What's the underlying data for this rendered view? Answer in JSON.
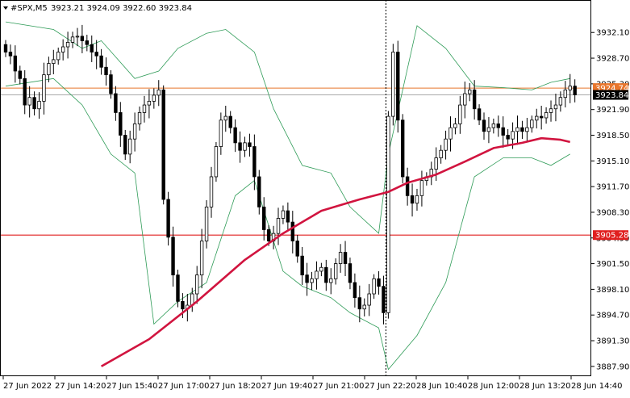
{
  "header": {
    "symbol": "#SPX,M5",
    "ohlc": "3923.21 3924.09 3922.60 3923.84"
  },
  "colors": {
    "background": "#ffffff",
    "bull_candle": "#000000",
    "bear_candle": "#000000",
    "sma": "#d1143f",
    "bollinger": "#2e9b57",
    "upper_hline": "#e8762d",
    "lower_hline": "#e01f1f",
    "price_line": "#a9a9a9",
    "session_separator": "#000000"
  },
  "chart_data": {
    "type": "candlestick",
    "ylim": [
      3886.6,
      3936.4
    ],
    "y_ticks": [
      "3932.10",
      "3928.70",
      "3925.30",
      "3921.90",
      "3918.50",
      "3915.10",
      "3911.70",
      "3908.30",
      "3904.90",
      "3901.50",
      "3898.10",
      "3894.70",
      "3891.30",
      "3887.90"
    ],
    "x_ticks": [
      "27 Jun 2022",
      "27 Jun 14:20",
      "27 Jun 15:40",
      "27 Jun 17:00",
      "27 Jun 18:20",
      "27 Jun 19:40",
      "27 Jun 21:00",
      "27 Jun 22:20",
      "28 Jun 10:40",
      "28 Jun 12:00",
      "28 Jun 13:20",
      "28 Jun 14:40"
    ],
    "price_labels": [
      {
        "name": "upper-level",
        "value": 3924.74,
        "label": "3924.74"
      },
      {
        "name": "current-price",
        "value": 3923.84,
        "label": "3923.84"
      },
      {
        "name": "lower-level",
        "value": 3905.28,
        "label": "3905.28"
      }
    ],
    "session_break_index": 80,
    "candle_closes": [
      3929.5,
      3929.0,
      3927.0,
      3926.0,
      3922.5,
      3923.5,
      3922.0,
      3923.0,
      3926.5,
      3928.0,
      3928.5,
      3929.5,
      3930.2,
      3930.8,
      3931.5,
      3931.6,
      3931.0,
      3930.5,
      3929.5,
      3929.0,
      3927.5,
      3926.5,
      3924.0,
      3921.5,
      3918.5,
      3916.0,
      3918.0,
      3920.0,
      3921.5,
      3922.5,
      3923.0,
      3923.8,
      3924.5,
      3910.0,
      3905.0,
      3900.0,
      3896.5,
      3895.5,
      3896.0,
      3897.5,
      3900.0,
      3904.5,
      3909.0,
      3913.0,
      3917.0,
      3920.5,
      3921.0,
      3919.5,
      3917.5,
      3916.5,
      3917.5,
      3917.0,
      3913.0,
      3909.0,
      3906.0,
      3904.5,
      3905.5,
      3907.5,
      3908.5,
      3907.0,
      3904.5,
      3902.5,
      3900.0,
      3899.0,
      3899.5,
      3900.5,
      3901.0,
      3899.0,
      3899.5,
      3901.5,
      3903.0,
      3901.5,
      3899.0,
      3897.0,
      3895.5,
      3896.0,
      3897.5,
      3899.5,
      3898.5,
      3895.0,
      3921.0,
      3929.5,
      3920.5,
      3913.0,
      3910.5,
      3909.5,
      3910.5,
      3912.5,
      3913.0,
      3914.0,
      3915.5,
      3916.5,
      3918.0,
      3919.5,
      3920.0,
      3922.5,
      3924.0,
      3924.5,
      3922.0,
      3920.5,
      3919.0,
      3919.5,
      3920.0,
      3919.5,
      3918.5,
      3918.0,
      3919.0,
      3919.5,
      3919.0,
      3919.5,
      3920.5,
      3921.0,
      3920.8,
      3921.5,
      3922.0,
      3922.5,
      3923.5,
      3924.5,
      3925.0,
      3923.84
    ],
    "sma_points": [
      [
        20,
        3887.9
      ],
      [
        30,
        3891.5
      ],
      [
        40,
        3896.5
      ],
      [
        50,
        3902.0
      ],
      [
        58,
        3905.5
      ],
      [
        66,
        3908.5
      ],
      [
        74,
        3910.0
      ],
      [
        80,
        3911.0
      ],
      [
        84,
        3912.2
      ],
      [
        90,
        3913.3
      ],
      [
        96,
        3915.0
      ],
      [
        102,
        3916.8
      ],
      [
        108,
        3917.5
      ],
      [
        112,
        3918.1
      ],
      [
        116,
        3917.9
      ],
      [
        118,
        3917.6
      ]
    ],
    "bb_upper": [
      [
        0,
        3933.5
      ],
      [
        10,
        3932.5
      ],
      [
        16,
        3930.0
      ],
      [
        20,
        3931.0
      ],
      [
        27,
        3926.0
      ],
      [
        32,
        3927.0
      ],
      [
        36,
        3930.0
      ],
      [
        42,
        3932.0
      ],
      [
        46,
        3932.5
      ],
      [
        52,
        3929.5
      ],
      [
        56,
        3922.0
      ],
      [
        62,
        3914.5
      ],
      [
        68,
        3913.5
      ],
      [
        72,
        3909.0
      ],
      [
        78,
        3905.5
      ],
      [
        80,
        3916.0
      ],
      [
        86,
        3933.0
      ],
      [
        92,
        3930.0
      ],
      [
        98,
        3925.0
      ],
      [
        104,
        3924.8
      ],
      [
        110,
        3924.5
      ],
      [
        114,
        3925.5
      ],
      [
        118,
        3926.0
      ]
    ],
    "bb_lower": [
      [
        0,
        3925.0
      ],
      [
        10,
        3926.0
      ],
      [
        16,
        3922.5
      ],
      [
        22,
        3916.0
      ],
      [
        27,
        3913.5
      ],
      [
        31,
        3893.5
      ],
      [
        36,
        3896.5
      ],
      [
        42,
        3899.0
      ],
      [
        48,
        3910.5
      ],
      [
        52,
        3912.5
      ],
      [
        58,
        3900.5
      ],
      [
        62,
        3898.5
      ],
      [
        68,
        3897.0
      ],
      [
        72,
        3895.0
      ],
      [
        78,
        3893.0
      ],
      [
        80,
        3887.5
      ],
      [
        86,
        3892.0
      ],
      [
        92,
        3899.0
      ],
      [
        98,
        3913.0
      ],
      [
        104,
        3915.5
      ],
      [
        110,
        3915.5
      ],
      [
        114,
        3914.5
      ],
      [
        118,
        3916.0
      ]
    ]
  }
}
